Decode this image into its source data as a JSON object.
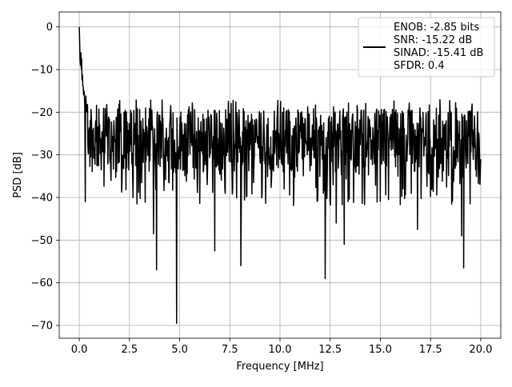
{
  "chart_data": {
    "type": "line",
    "title": "",
    "xlabel": "Frequency [MHz]",
    "ylabel": "PSD [dB]",
    "xlim": [
      -1.0,
      21.0
    ],
    "ylim": [
      -73.0,
      3.5
    ],
    "xticks": [
      0.0,
      2.5,
      5.0,
      7.5,
      10.0,
      12.5,
      15.0,
      17.5,
      20.0
    ],
    "xtick_labels": [
      "0.0",
      "2.5",
      "5.0",
      "7.5",
      "10.0",
      "12.5",
      "15.0",
      "17.5",
      "20.0"
    ],
    "yticks": [
      0,
      -10,
      -20,
      -30,
      -40,
      -50,
      -60,
      -70
    ],
    "ytick_labels": [
      "0",
      "−10",
      "−20",
      "−30",
      "−40",
      "−50",
      "−60",
      "−70"
    ],
    "grid": true,
    "legend_position": "top-right",
    "legend_lines": [
      "ENOB: -2.85 bits",
      "SNR: -15.22 dB",
      "SINAD: -15.41 dB",
      "SFDR: 0.4"
    ],
    "series": [
      {
        "color": "#000000",
        "x_range": [
          0.0,
          20.0
        ],
        "num_points": 1024,
        "peak": {
          "x": 0.0,
          "y": 0.0
        },
        "band_upper": -19.0,
        "band_lower": -34.0,
        "notable_dips": [
          {
            "x": 0.3,
            "y": -41.0
          },
          {
            "x": 3.7,
            "y": -48.5
          },
          {
            "x": 3.85,
            "y": -57.0
          },
          {
            "x": 4.85,
            "y": -69.5
          },
          {
            "x": 6.75,
            "y": -52.5
          },
          {
            "x": 8.05,
            "y": -56.0
          },
          {
            "x": 12.25,
            "y": -59.0
          },
          {
            "x": 12.8,
            "y": -46.0
          },
          {
            "x": 13.2,
            "y": -51.0
          },
          {
            "x": 16.85,
            "y": -47.5
          },
          {
            "x": 19.15,
            "y": -56.5
          },
          {
            "x": 19.05,
            "y": -49.0
          }
        ]
      }
    ]
  }
}
